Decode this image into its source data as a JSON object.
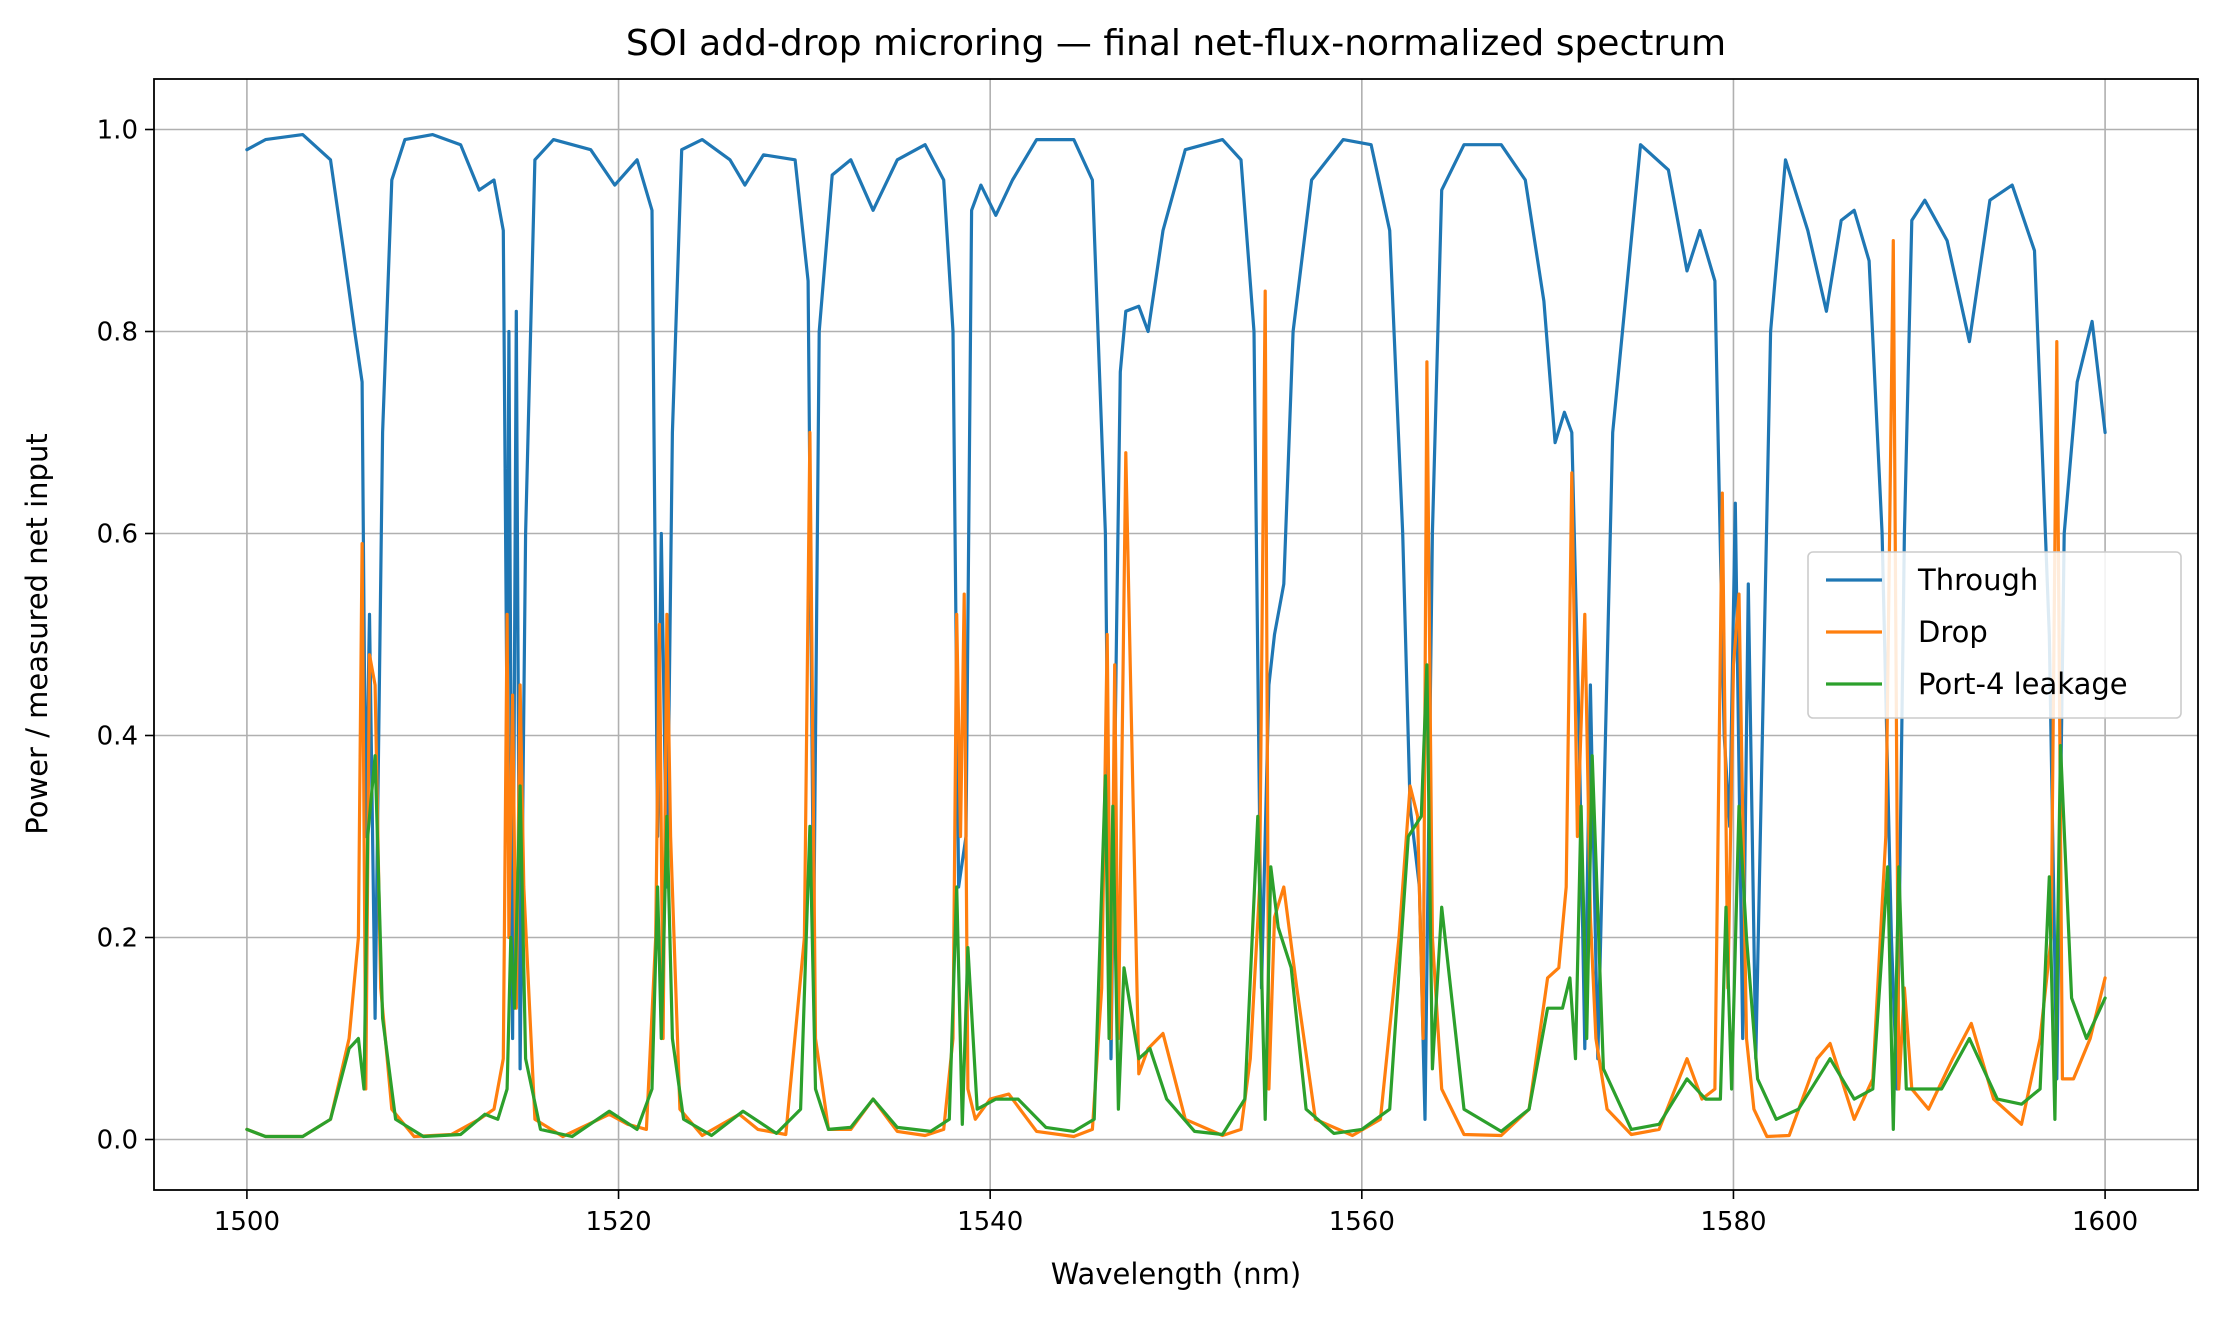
{
  "chart_data": {
    "type": "line",
    "title": "SOI add-drop microring — final net-flux-normalized spectrum",
    "xlabel": "Wavelength (nm)",
    "ylabel": "Power / measured net input",
    "xlim": [
      1495,
      1605
    ],
    "ylim": [
      -0.05,
      1.05
    ],
    "xticks": [
      1500,
      1520,
      1540,
      1560,
      1580,
      1600
    ],
    "yticks": [
      0.0,
      0.2,
      0.4,
      0.6,
      0.8,
      1.0
    ],
    "xtick_labels": [
      "1500",
      "1520",
      "1540",
      "1560",
      "1580",
      "1600"
    ],
    "ytick_labels": [
      "0.0",
      "0.2",
      "0.4",
      "0.6",
      "0.8",
      "1.0"
    ],
    "grid": true,
    "legend_position": "center-right",
    "series": [
      {
        "name": "Through",
        "color": "#1f77b4",
        "x": [
          1500,
          1501,
          1503,
          1504.5,
          1505.2,
          1505.8,
          1506.2,
          1506.4,
          1506.6,
          1506.9,
          1507.3,
          1507.8,
          1508.5,
          1510,
          1511.5,
          1512.5,
          1513.3,
          1513.8,
          1514.0,
          1514.1,
          1514.3,
          1514.5,
          1514.7,
          1515.0,
          1515.5,
          1516.5,
          1518.5,
          1519.8,
          1521,
          1521.8,
          1522.1,
          1522.3,
          1522.6,
          1522.9,
          1523.4,
          1524.5,
          1526,
          1526.8,
          1527.8,
          1529.5,
          1530.2,
          1530.5,
          1530.8,
          1531.5,
          1532.5,
          1533.7,
          1535.0,
          1536.5,
          1537.5,
          1538.0,
          1538.3,
          1538.7,
          1539.0,
          1539.5,
          1540.3,
          1541.2,
          1542.5,
          1544.5,
          1545.5,
          1546.2,
          1546.5,
          1546.8,
          1547.0,
          1547.3,
          1548.0,
          1548.5,
          1549.3,
          1550.5,
          1552.5,
          1553.5,
          1554.2,
          1554.6,
          1555.0,
          1555.3,
          1555.8,
          1556.3,
          1557.3,
          1559.0,
          1560.5,
          1561.5,
          1562.2,
          1562.6,
          1563.1,
          1563.4,
          1563.8,
          1564.3,
          1565.5,
          1567.5,
          1568.8,
          1569.8,
          1570.4,
          1570.9,
          1571.3,
          1571.7,
          1572.0,
          1572.3,
          1572.7,
          1573.5,
          1575,
          1576.5,
          1577.5,
          1578.2,
          1579.0,
          1579.5,
          1579.8,
          1580.1,
          1580.5,
          1580.8,
          1581.2,
          1582.0,
          1582.8,
          1584.0,
          1585.0,
          1585.8,
          1586.5,
          1587.3,
          1588.0,
          1588.5,
          1588.8,
          1589.2,
          1589.6,
          1590.3,
          1591.5,
          1592.7,
          1593.8,
          1595.0,
          1596.2,
          1597.0,
          1597.4,
          1597.8,
          1598.5,
          1599.3,
          1600
        ],
        "y": [
          0.98,
          0.99,
          0.995,
          0.97,
          0.88,
          0.8,
          0.75,
          0.3,
          0.52,
          0.12,
          0.7,
          0.95,
          0.99,
          0.995,
          0.985,
          0.94,
          0.95,
          0.9,
          0.4,
          0.8,
          0.1,
          0.82,
          0.07,
          0.6,
          0.97,
          0.99,
          0.98,
          0.945,
          0.97,
          0.92,
          0.3,
          0.6,
          0.25,
          0.7,
          0.98,
          0.99,
          0.97,
          0.945,
          0.975,
          0.97,
          0.85,
          0.2,
          0.8,
          0.955,
          0.97,
          0.92,
          0.97,
          0.985,
          0.95,
          0.8,
          0.25,
          0.3,
          0.92,
          0.945,
          0.915,
          0.95,
          0.99,
          0.99,
          0.95,
          0.6,
          0.08,
          0.5,
          0.76,
          0.82,
          0.825,
          0.8,
          0.9,
          0.98,
          0.99,
          0.97,
          0.8,
          0.15,
          0.45,
          0.5,
          0.55,
          0.8,
          0.95,
          0.99,
          0.985,
          0.9,
          0.6,
          0.33,
          0.25,
          0.02,
          0.6,
          0.94,
          0.985,
          0.985,
          0.95,
          0.83,
          0.69,
          0.72,
          0.7,
          0.4,
          0.09,
          0.45,
          0.08,
          0.7,
          0.985,
          0.96,
          0.86,
          0.9,
          0.85,
          0.4,
          0.31,
          0.63,
          0.1,
          0.55,
          0.08,
          0.8,
          0.97,
          0.9,
          0.82,
          0.91,
          0.92,
          0.87,
          0.6,
          0.2,
          0.05,
          0.6,
          0.91,
          0.93,
          0.89,
          0.79,
          0.93,
          0.945,
          0.88,
          0.5,
          0.06,
          0.6,
          0.75,
          0.81,
          0.7
        ]
      },
      {
        "name": "Drop",
        "color": "#ff7f0e",
        "x": [
          1500,
          1501,
          1503,
          1504.5,
          1505.5,
          1506.0,
          1506.2,
          1506.4,
          1506.6,
          1506.9,
          1507.2,
          1507.8,
          1509,
          1511,
          1512.5,
          1513.3,
          1513.8,
          1514.0,
          1514.1,
          1514.3,
          1514.5,
          1514.7,
          1514.9,
          1515.5,
          1517,
          1519.5,
          1520.5,
          1521.5,
          1522.0,
          1522.2,
          1522.4,
          1522.6,
          1522.8,
          1523.3,
          1524.5,
          1526.5,
          1527.5,
          1529.0,
          1530.0,
          1530.3,
          1530.6,
          1531.3,
          1532.5,
          1533.7,
          1535.0,
          1536.5,
          1537.5,
          1538.0,
          1538.2,
          1538.4,
          1538.6,
          1538.8,
          1539.2,
          1540.0,
          1541.0,
          1542.5,
          1544.5,
          1545.5,
          1546.0,
          1546.3,
          1546.5,
          1546.7,
          1546.9,
          1547.3,
          1548.0,
          1548.5,
          1549.3,
          1550.5,
          1552.5,
          1553.5,
          1554.0,
          1554.5,
          1554.8,
          1555.0,
          1555.3,
          1555.8,
          1556.5,
          1557.5,
          1559.5,
          1561.0,
          1562.0,
          1562.6,
          1563.0,
          1563.3,
          1563.5,
          1563.8,
          1564.3,
          1565.5,
          1567.5,
          1569.0,
          1570.0,
          1570.6,
          1571.0,
          1571.3,
          1571.6,
          1572.0,
          1572.3,
          1572.6,
          1573.2,
          1574.5,
          1576.0,
          1577.5,
          1578.3,
          1579.0,
          1579.4,
          1579.7,
          1580.0,
          1580.3,
          1580.7,
          1581.1,
          1581.8,
          1583.0,
          1584.5,
          1585.2,
          1586.5,
          1587.5,
          1588.2,
          1588.6,
          1588.9,
          1589.2,
          1589.6,
          1590.5,
          1591.8,
          1592.8,
          1594.0,
          1595.5,
          1596.5,
          1597.1,
          1597.4,
          1597.7,
          1598.3,
          1599.2,
          1600
        ],
        "y": [
          0.01,
          0.003,
          0.003,
          0.02,
          0.1,
          0.2,
          0.59,
          0.05,
          0.48,
          0.45,
          0.15,
          0.03,
          0.003,
          0.005,
          0.02,
          0.03,
          0.08,
          0.52,
          0.2,
          0.44,
          0.13,
          0.45,
          0.25,
          0.02,
          0.003,
          0.025,
          0.015,
          0.01,
          0.2,
          0.51,
          0.1,
          0.52,
          0.3,
          0.03,
          0.004,
          0.025,
          0.01,
          0.005,
          0.2,
          0.7,
          0.1,
          0.01,
          0.01,
          0.04,
          0.008,
          0.004,
          0.01,
          0.1,
          0.52,
          0.3,
          0.54,
          0.05,
          0.02,
          0.04,
          0.045,
          0.008,
          0.003,
          0.01,
          0.15,
          0.5,
          0.1,
          0.47,
          0.1,
          0.68,
          0.065,
          0.09,
          0.105,
          0.02,
          0.004,
          0.01,
          0.08,
          0.25,
          0.84,
          0.05,
          0.22,
          0.25,
          0.15,
          0.02,
          0.004,
          0.02,
          0.2,
          0.35,
          0.32,
          0.1,
          0.77,
          0.2,
          0.05,
          0.005,
          0.004,
          0.03,
          0.16,
          0.17,
          0.25,
          0.66,
          0.3,
          0.52,
          0.22,
          0.1,
          0.03,
          0.005,
          0.01,
          0.08,
          0.04,
          0.05,
          0.64,
          0.15,
          0.47,
          0.54,
          0.1,
          0.03,
          0.003,
          0.004,
          0.08,
          0.095,
          0.02,
          0.06,
          0.3,
          0.89,
          0.05,
          0.15,
          0.05,
          0.03,
          0.08,
          0.115,
          0.04,
          0.015,
          0.1,
          0.2,
          0.79,
          0.06,
          0.06,
          0.1,
          0.16
        ]
      },
      {
        "name": "Port-4 leakage",
        "color": "#2ca02c",
        "x": [
          1500,
          1501,
          1503,
          1504.5,
          1505.5,
          1506.0,
          1506.3,
          1506.5,
          1506.9,
          1507.3,
          1508.0,
          1509.5,
          1511.5,
          1512.8,
          1513.5,
          1514.0,
          1514.2,
          1514.4,
          1514.7,
          1515.0,
          1515.8,
          1517.5,
          1519.5,
          1521.0,
          1521.8,
          1522.1,
          1522.3,
          1522.6,
          1522.9,
          1523.5,
          1525.0,
          1526.7,
          1528.5,
          1529.8,
          1530.3,
          1530.6,
          1531.3,
          1532.5,
          1533.7,
          1535.0,
          1536.8,
          1537.8,
          1538.2,
          1538.5,
          1538.8,
          1539.3,
          1540.3,
          1541.5,
          1543.0,
          1544.5,
          1545.6,
          1546.2,
          1546.4,
          1546.6,
          1546.9,
          1547.2,
          1548.0,
          1548.6,
          1549.5,
          1551.0,
          1552.5,
          1553.7,
          1554.4,
          1554.8,
          1555.1,
          1555.5,
          1556.2,
          1557.0,
          1558.5,
          1560.0,
          1561.5,
          1562.5,
          1563.2,
          1563.5,
          1563.8,
          1564.3,
          1565.5,
          1567.5,
          1569.0,
          1570.0,
          1570.8,
          1571.2,
          1571.5,
          1571.8,
          1572.1,
          1572.4,
          1573.0,
          1574.5,
          1576.0,
          1577.5,
          1578.5,
          1579.3,
          1579.6,
          1579.9,
          1580.3,
          1580.7,
          1581.3,
          1582.3,
          1583.5,
          1585.2,
          1586.5,
          1587.5,
          1588.3,
          1588.6,
          1588.9,
          1589.3,
          1590.0,
          1591.2,
          1592.7,
          1594.2,
          1595.5,
          1596.5,
          1597.0,
          1597.3,
          1597.6,
          1598.2,
          1599.0,
          1600
        ],
        "y": [
          0.01,
          0.003,
          0.003,
          0.02,
          0.09,
          0.1,
          0.05,
          0.3,
          0.38,
          0.12,
          0.02,
          0.003,
          0.005,
          0.025,
          0.02,
          0.05,
          0.2,
          0.13,
          0.35,
          0.08,
          0.01,
          0.003,
          0.028,
          0.01,
          0.05,
          0.25,
          0.1,
          0.32,
          0.1,
          0.02,
          0.004,
          0.028,
          0.006,
          0.03,
          0.31,
          0.05,
          0.01,
          0.012,
          0.04,
          0.012,
          0.008,
          0.02,
          0.25,
          0.015,
          0.19,
          0.03,
          0.04,
          0.04,
          0.012,
          0.008,
          0.02,
          0.36,
          0.1,
          0.33,
          0.03,
          0.17,
          0.08,
          0.09,
          0.04,
          0.008,
          0.005,
          0.04,
          0.32,
          0.02,
          0.27,
          0.21,
          0.17,
          0.03,
          0.006,
          0.01,
          0.03,
          0.3,
          0.32,
          0.47,
          0.07,
          0.23,
          0.03,
          0.008,
          0.03,
          0.13,
          0.13,
          0.16,
          0.08,
          0.33,
          0.1,
          0.38,
          0.07,
          0.01,
          0.015,
          0.06,
          0.04,
          0.04,
          0.23,
          0.05,
          0.33,
          0.2,
          0.06,
          0.02,
          0.03,
          0.08,
          0.04,
          0.05,
          0.27,
          0.01,
          0.27,
          0.05,
          0.05,
          0.05,
          0.1,
          0.04,
          0.035,
          0.05,
          0.26,
          0.02,
          0.39,
          0.14,
          0.1,
          0.14
        ]
      }
    ]
  }
}
